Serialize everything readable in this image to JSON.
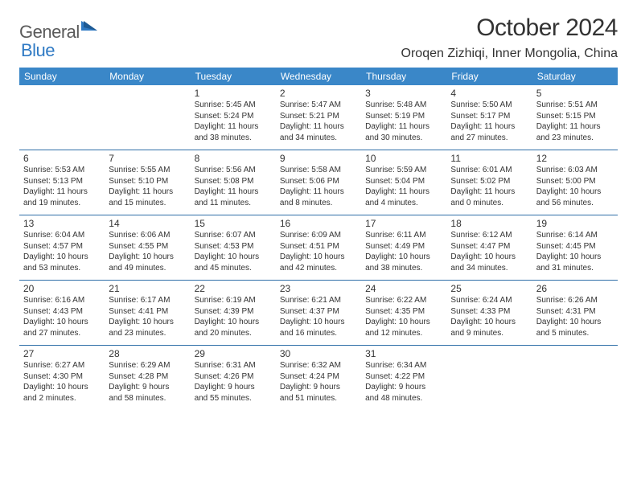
{
  "logo": {
    "general": "General",
    "blue": "Blue"
  },
  "title": "October 2024",
  "location": "Oroqen Zizhiqi, Inner Mongolia, China",
  "colors": {
    "header_bg": "#3a87c8",
    "header_text": "#ffffff",
    "divider": "#2f6fa8",
    "body_text": "#333333",
    "logo_gray": "#5a5a5a",
    "logo_blue": "#2f7ac4",
    "background": "#ffffff"
  },
  "day_names": [
    "Sunday",
    "Monday",
    "Tuesday",
    "Wednesday",
    "Thursday",
    "Friday",
    "Saturday"
  ],
  "weeks": [
    [
      null,
      null,
      {
        "n": "1",
        "sr": "Sunrise: 5:45 AM",
        "ss": "Sunset: 5:24 PM",
        "d1": "Daylight: 11 hours",
        "d2": "and 38 minutes."
      },
      {
        "n": "2",
        "sr": "Sunrise: 5:47 AM",
        "ss": "Sunset: 5:21 PM",
        "d1": "Daylight: 11 hours",
        "d2": "and 34 minutes."
      },
      {
        "n": "3",
        "sr": "Sunrise: 5:48 AM",
        "ss": "Sunset: 5:19 PM",
        "d1": "Daylight: 11 hours",
        "d2": "and 30 minutes."
      },
      {
        "n": "4",
        "sr": "Sunrise: 5:50 AM",
        "ss": "Sunset: 5:17 PM",
        "d1": "Daylight: 11 hours",
        "d2": "and 27 minutes."
      },
      {
        "n": "5",
        "sr": "Sunrise: 5:51 AM",
        "ss": "Sunset: 5:15 PM",
        "d1": "Daylight: 11 hours",
        "d2": "and 23 minutes."
      }
    ],
    [
      {
        "n": "6",
        "sr": "Sunrise: 5:53 AM",
        "ss": "Sunset: 5:13 PM",
        "d1": "Daylight: 11 hours",
        "d2": "and 19 minutes."
      },
      {
        "n": "7",
        "sr": "Sunrise: 5:55 AM",
        "ss": "Sunset: 5:10 PM",
        "d1": "Daylight: 11 hours",
        "d2": "and 15 minutes."
      },
      {
        "n": "8",
        "sr": "Sunrise: 5:56 AM",
        "ss": "Sunset: 5:08 PM",
        "d1": "Daylight: 11 hours",
        "d2": "and 11 minutes."
      },
      {
        "n": "9",
        "sr": "Sunrise: 5:58 AM",
        "ss": "Sunset: 5:06 PM",
        "d1": "Daylight: 11 hours",
        "d2": "and 8 minutes."
      },
      {
        "n": "10",
        "sr": "Sunrise: 5:59 AM",
        "ss": "Sunset: 5:04 PM",
        "d1": "Daylight: 11 hours",
        "d2": "and 4 minutes."
      },
      {
        "n": "11",
        "sr": "Sunrise: 6:01 AM",
        "ss": "Sunset: 5:02 PM",
        "d1": "Daylight: 11 hours",
        "d2": "and 0 minutes."
      },
      {
        "n": "12",
        "sr": "Sunrise: 6:03 AM",
        "ss": "Sunset: 5:00 PM",
        "d1": "Daylight: 10 hours",
        "d2": "and 56 minutes."
      }
    ],
    [
      {
        "n": "13",
        "sr": "Sunrise: 6:04 AM",
        "ss": "Sunset: 4:57 PM",
        "d1": "Daylight: 10 hours",
        "d2": "and 53 minutes."
      },
      {
        "n": "14",
        "sr": "Sunrise: 6:06 AM",
        "ss": "Sunset: 4:55 PM",
        "d1": "Daylight: 10 hours",
        "d2": "and 49 minutes."
      },
      {
        "n": "15",
        "sr": "Sunrise: 6:07 AM",
        "ss": "Sunset: 4:53 PM",
        "d1": "Daylight: 10 hours",
        "d2": "and 45 minutes."
      },
      {
        "n": "16",
        "sr": "Sunrise: 6:09 AM",
        "ss": "Sunset: 4:51 PM",
        "d1": "Daylight: 10 hours",
        "d2": "and 42 minutes."
      },
      {
        "n": "17",
        "sr": "Sunrise: 6:11 AM",
        "ss": "Sunset: 4:49 PM",
        "d1": "Daylight: 10 hours",
        "d2": "and 38 minutes."
      },
      {
        "n": "18",
        "sr": "Sunrise: 6:12 AM",
        "ss": "Sunset: 4:47 PM",
        "d1": "Daylight: 10 hours",
        "d2": "and 34 minutes."
      },
      {
        "n": "19",
        "sr": "Sunrise: 6:14 AM",
        "ss": "Sunset: 4:45 PM",
        "d1": "Daylight: 10 hours",
        "d2": "and 31 minutes."
      }
    ],
    [
      {
        "n": "20",
        "sr": "Sunrise: 6:16 AM",
        "ss": "Sunset: 4:43 PM",
        "d1": "Daylight: 10 hours",
        "d2": "and 27 minutes."
      },
      {
        "n": "21",
        "sr": "Sunrise: 6:17 AM",
        "ss": "Sunset: 4:41 PM",
        "d1": "Daylight: 10 hours",
        "d2": "and 23 minutes."
      },
      {
        "n": "22",
        "sr": "Sunrise: 6:19 AM",
        "ss": "Sunset: 4:39 PM",
        "d1": "Daylight: 10 hours",
        "d2": "and 20 minutes."
      },
      {
        "n": "23",
        "sr": "Sunrise: 6:21 AM",
        "ss": "Sunset: 4:37 PM",
        "d1": "Daylight: 10 hours",
        "d2": "and 16 minutes."
      },
      {
        "n": "24",
        "sr": "Sunrise: 6:22 AM",
        "ss": "Sunset: 4:35 PM",
        "d1": "Daylight: 10 hours",
        "d2": "and 12 minutes."
      },
      {
        "n": "25",
        "sr": "Sunrise: 6:24 AM",
        "ss": "Sunset: 4:33 PM",
        "d1": "Daylight: 10 hours",
        "d2": "and 9 minutes."
      },
      {
        "n": "26",
        "sr": "Sunrise: 6:26 AM",
        "ss": "Sunset: 4:31 PM",
        "d1": "Daylight: 10 hours",
        "d2": "and 5 minutes."
      }
    ],
    [
      {
        "n": "27",
        "sr": "Sunrise: 6:27 AM",
        "ss": "Sunset: 4:30 PM",
        "d1": "Daylight: 10 hours",
        "d2": "and 2 minutes."
      },
      {
        "n": "28",
        "sr": "Sunrise: 6:29 AM",
        "ss": "Sunset: 4:28 PM",
        "d1": "Daylight: 9 hours",
        "d2": "and 58 minutes."
      },
      {
        "n": "29",
        "sr": "Sunrise: 6:31 AM",
        "ss": "Sunset: 4:26 PM",
        "d1": "Daylight: 9 hours",
        "d2": "and 55 minutes."
      },
      {
        "n": "30",
        "sr": "Sunrise: 6:32 AM",
        "ss": "Sunset: 4:24 PM",
        "d1": "Daylight: 9 hours",
        "d2": "and 51 minutes."
      },
      {
        "n": "31",
        "sr": "Sunrise: 6:34 AM",
        "ss": "Sunset: 4:22 PM",
        "d1": "Daylight: 9 hours",
        "d2": "and 48 minutes."
      },
      null,
      null
    ]
  ]
}
